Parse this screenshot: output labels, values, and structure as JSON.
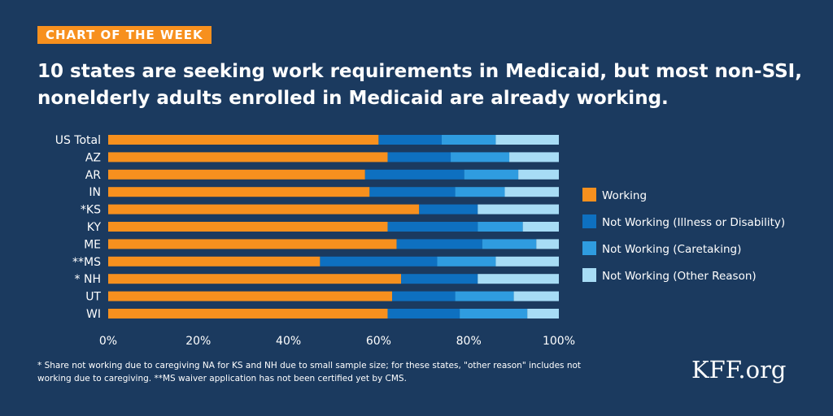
{
  "badge": "CHART OF THE WEEK",
  "title": "10 states are seeking work requirements in Medicaid, but most non-SSI, nonelderly adults enrolled in Medicaid are already working.",
  "footnote": "* Share not working due to caregiving NA for KS and NH due to small sample size; for these states, \"other reason\" includes not working due to caregiving.  **MS waiver application has not been certified yet by CMS.",
  "logo": "KFF.org",
  "colors": {
    "background": "#1b3a5f",
    "working": "#f7901e",
    "illness": "#0e70c0",
    "caretaking": "#2f9ce0",
    "other": "#a7dcf5",
    "badge": "#f7901e"
  },
  "chart_data": {
    "type": "bar",
    "orientation": "horizontal",
    "stacked": true,
    "categories": [
      "US Total",
      "AZ",
      "AR",
      "IN",
      "*KS",
      "KY",
      "ME",
      "**MS",
      "*  NH",
      "UT",
      "WI"
    ],
    "series": [
      {
        "name": "Working",
        "values": [
          60,
          62,
          57,
          58,
          69,
          62,
          64,
          47,
          65,
          63,
          62
        ]
      },
      {
        "name": "Not Working (Illness or Disability)",
        "values": [
          14,
          14,
          22,
          19,
          13,
          20,
          19,
          26,
          17,
          14,
          16
        ]
      },
      {
        "name": "Not Working (Caretaking)",
        "values": [
          12,
          13,
          12,
          11,
          0,
          10,
          12,
          13,
          0,
          13,
          15
        ]
      },
      {
        "name": "Not Working (Other Reason)",
        "values": [
          14,
          11,
          9,
          12,
          18,
          8,
          5,
          14,
          18,
          10,
          7
        ]
      }
    ],
    "xlim": [
      0,
      100
    ],
    "xticks": [
      "0%",
      "20%",
      "40%",
      "60%",
      "80%",
      "100%"
    ],
    "legend_position": "right",
    "grid": false
  }
}
